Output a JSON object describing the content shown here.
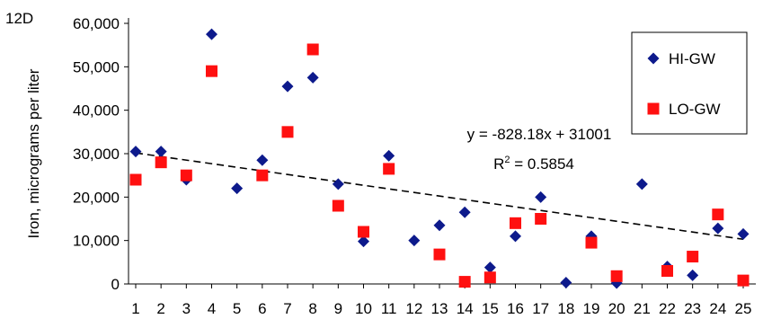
{
  "panel_label": "12D",
  "chart_data": {
    "type": "scatter",
    "ylabel": "Iron, micrograms per liter",
    "xlabel": "",
    "x_ticks": [
      "1",
      "2",
      "3",
      "4",
      "5",
      "6",
      "7",
      "8",
      "9",
      "10",
      "11",
      "12",
      "13",
      "14",
      "15",
      "16",
      "17",
      "18",
      "19",
      "20",
      "21",
      "22",
      "23",
      "24",
      "25"
    ],
    "y_ticks": [
      "0",
      "10,000",
      "20,000",
      "30,000",
      "40,000",
      "50,000",
      "60,000"
    ],
    "ylim": [
      0,
      60000
    ],
    "xlim": [
      1,
      25
    ],
    "grid": false,
    "legend_position": "top-right",
    "series": [
      {
        "name": "HI-GW",
        "marker": "diamond",
        "color": "#0d1a8c",
        "points": [
          [
            1,
            30500
          ],
          [
            2,
            30500
          ],
          [
            3,
            24000
          ],
          [
            4,
            57500
          ],
          [
            5,
            22000
          ],
          [
            6,
            28500
          ],
          [
            7,
            45500
          ],
          [
            8,
            47500
          ],
          [
            9,
            23000
          ],
          [
            10,
            9800
          ],
          [
            11,
            29500
          ],
          [
            12,
            10000
          ],
          [
            13,
            13500
          ],
          [
            14,
            16500
          ],
          [
            15,
            3800
          ],
          [
            16,
            11000
          ],
          [
            17,
            20000
          ],
          [
            18,
            300
          ],
          [
            19,
            11000
          ],
          [
            20,
            200
          ],
          [
            21,
            23000
          ],
          [
            22,
            4000
          ],
          [
            23,
            2000
          ],
          [
            24,
            12800
          ],
          [
            25,
            11500
          ]
        ]
      },
      {
        "name": "LO-GW",
        "marker": "square",
        "color": "#ff1010",
        "points": [
          [
            1,
            24000
          ],
          [
            2,
            28000
          ],
          [
            3,
            25000
          ],
          [
            4,
            49000
          ],
          [
            6,
            25000
          ],
          [
            7,
            35000
          ],
          [
            8,
            54000
          ],
          [
            9,
            18000
          ],
          [
            10,
            12000
          ],
          [
            11,
            26500
          ],
          [
            13,
            6800
          ],
          [
            14,
            500
          ],
          [
            15,
            1500
          ],
          [
            16,
            14000
          ],
          [
            17,
            15000
          ],
          [
            19,
            9500
          ],
          [
            20,
            1800
          ],
          [
            22,
            3000
          ],
          [
            23,
            6300
          ],
          [
            24,
            16000
          ],
          [
            25,
            800
          ]
        ]
      }
    ],
    "trendline": {
      "style": "dashed",
      "color": "#000000",
      "slope": -828.18,
      "intercept": 31001,
      "equation": "y = -828.18x + 31001",
      "r2_label": "R",
      "r2_sup": "2",
      "r2_value": " = 0.5854"
    }
  }
}
